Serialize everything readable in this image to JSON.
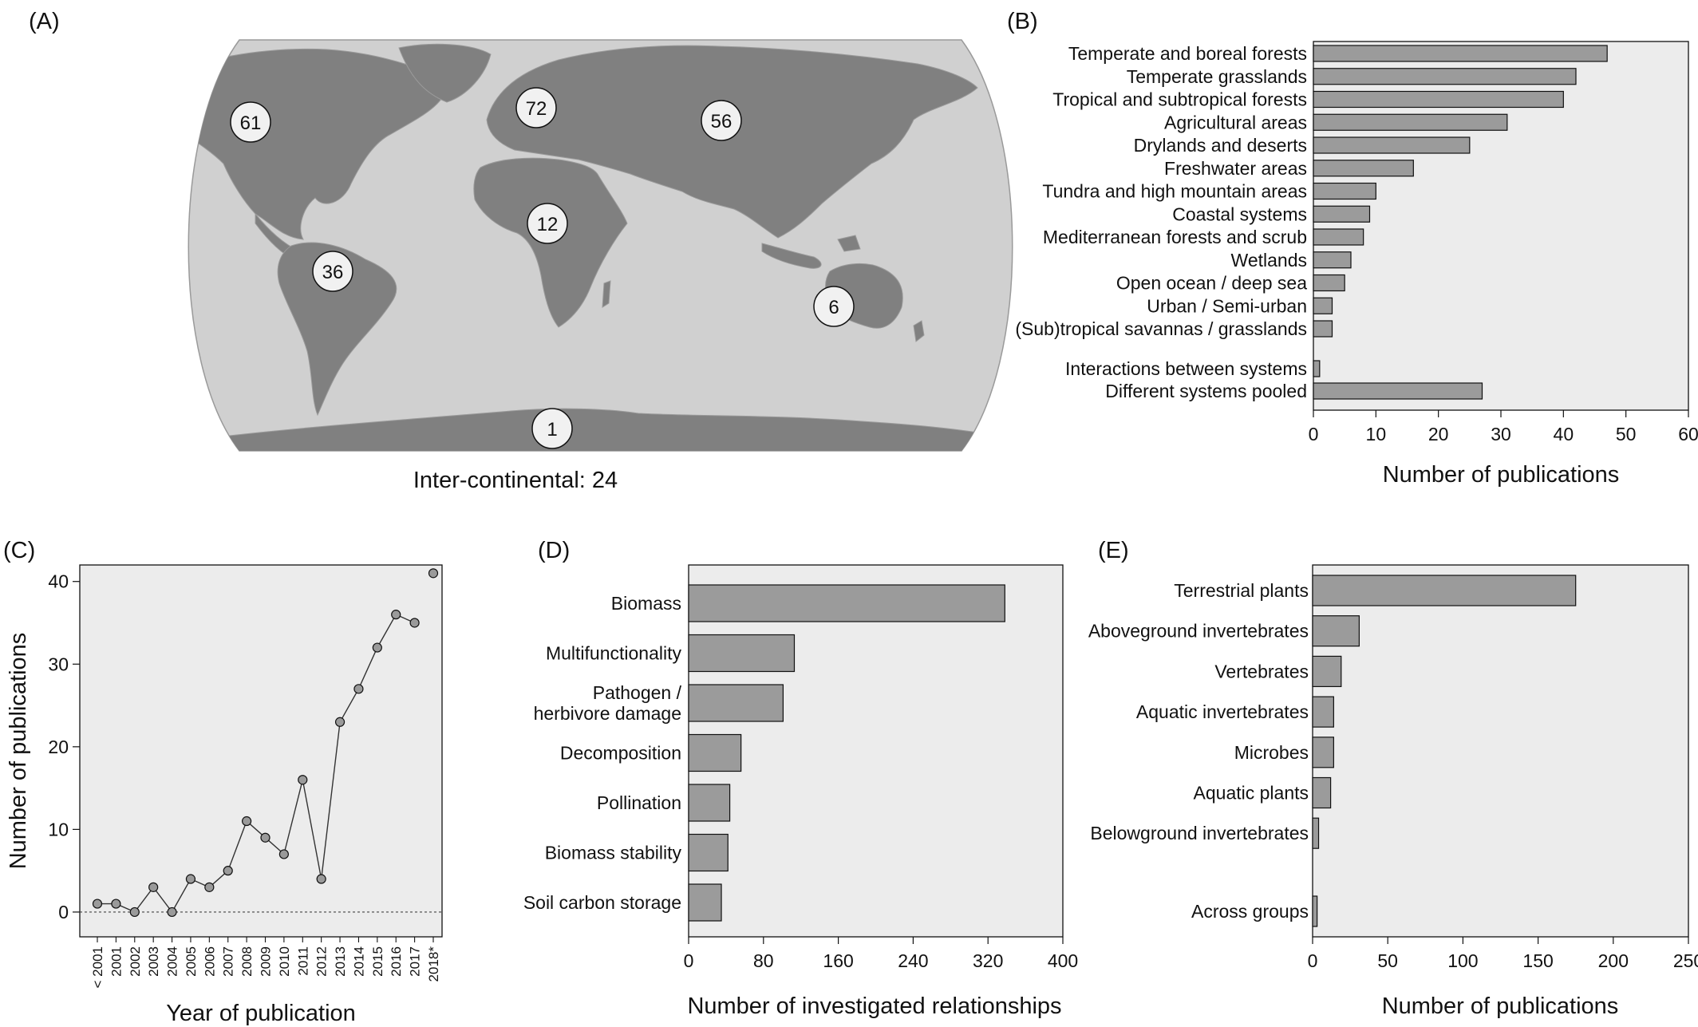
{
  "colors": {
    "panel_bg": "#ececec",
    "bar_fill": "#9b9b9b",
    "ocean": "#d0d0d0",
    "land": "#808080",
    "bubble_fill": "#f1f1f1",
    "point_fill": "#9a9a9a"
  },
  "chart_data": [
    {
      "panel": "(A)",
      "type": "map",
      "regions": [
        {
          "region": "North America",
          "value": "61"
        },
        {
          "region": "Europe",
          "value": "72"
        },
        {
          "region": "Asia",
          "value": "56"
        },
        {
          "region": "Africa",
          "value": "12"
        },
        {
          "region": "South America",
          "value": "36"
        },
        {
          "region": "Australia",
          "value": "6"
        },
        {
          "region": "Antarctica",
          "value": "1"
        }
      ],
      "caption": "Inter-continental: 24"
    },
    {
      "panel": "(B)",
      "type": "bar",
      "orientation": "horizontal",
      "categories": [
        "Temperate and boreal forests",
        "Temperate grasslands",
        "Tropical and subtropical forests",
        "Agricultural areas",
        "Drylands and deserts",
        "Freshwater areas",
        "Tundra and high mountain areas",
        "Coastal systems",
        "Mediterranean forests and scrub",
        "Wetlands",
        "Open ocean / deep sea",
        "Urban / Semi-urban",
        "(Sub)tropical savannas / grasslands",
        "Interactions between systems",
        "Different systems pooled"
      ],
      "values": [
        47,
        42,
        40,
        31,
        25,
        16,
        10,
        9,
        8,
        6,
        5,
        3,
        3,
        1,
        27
      ],
      "xlabel": "Number of publications",
      "xlim": [
        0,
        60
      ],
      "xticks": [
        "0",
        "10",
        "20",
        "30",
        "40",
        "50",
        "60"
      ]
    },
    {
      "panel": "(C)",
      "type": "line",
      "x": [
        "< 2001",
        "2001",
        "2002",
        "2003",
        "2004",
        "2005",
        "2006",
        "2007",
        "2008",
        "2009",
        "2010",
        "2011",
        "2012",
        "2013",
        "2014",
        "2015",
        "2016",
        "2017",
        "2018*"
      ],
      "y": [
        1,
        1,
        0,
        3,
        0,
        4,
        3,
        5,
        11,
        9,
        7,
        16,
        4,
        23,
        27,
        32,
        36,
        35,
        41
      ],
      "connected": [
        true,
        true,
        true,
        true,
        true,
        true,
        true,
        true,
        true,
        true,
        true,
        true,
        true,
        true,
        true,
        true,
        true,
        true,
        false
      ],
      "xlabel": "Year of publication",
      "ylabel": "Number of publications",
      "ylim": [
        -3,
        42
      ],
      "yticks": [
        "0",
        "10",
        "20",
        "30",
        "40"
      ],
      "reference_line": {
        "y": 0,
        "style": "dotted"
      }
    },
    {
      "panel": "(D)",
      "type": "bar",
      "orientation": "horizontal",
      "categories": [
        "Biomass",
        "Multifunctionality",
        "Pathogen / herbivore damage",
        "Decomposition",
        "Pollination",
        "Biomass stability",
        "Soil carbon storage"
      ],
      "category_lines": [
        [
          "Biomass"
        ],
        [
          "Multifunctionality"
        ],
        [
          "Pathogen /",
          "herbivore damage"
        ],
        [
          "Decomposition"
        ],
        [
          "Pollination"
        ],
        [
          "Biomass stability"
        ],
        [
          "Soil carbon storage"
        ]
      ],
      "values": [
        338,
        113,
        101,
        56,
        44,
        42,
        35
      ],
      "xlabel": "Number of investigated relationships",
      "xlim": [
        0,
        400
      ],
      "xticks": [
        "0",
        "80",
        "160",
        "240",
        "320",
        "400"
      ]
    },
    {
      "panel": "(E)",
      "type": "bar",
      "orientation": "horizontal",
      "categories": [
        "Terrestrial plants",
        "Aboveground invertebrates",
        "Vertebrates",
        "Aquatic invertebrates",
        "Microbes",
        "Aquatic plants",
        "Belowground invertebrates",
        "Across groups"
      ],
      "values": [
        175,
        31,
        19,
        14,
        14,
        12,
        4,
        3
      ],
      "xlabel": "Number of publications",
      "xlim": [
        0,
        250
      ],
      "xticks": [
        "0",
        "50",
        "100",
        "150",
        "200",
        "250"
      ]
    }
  ]
}
